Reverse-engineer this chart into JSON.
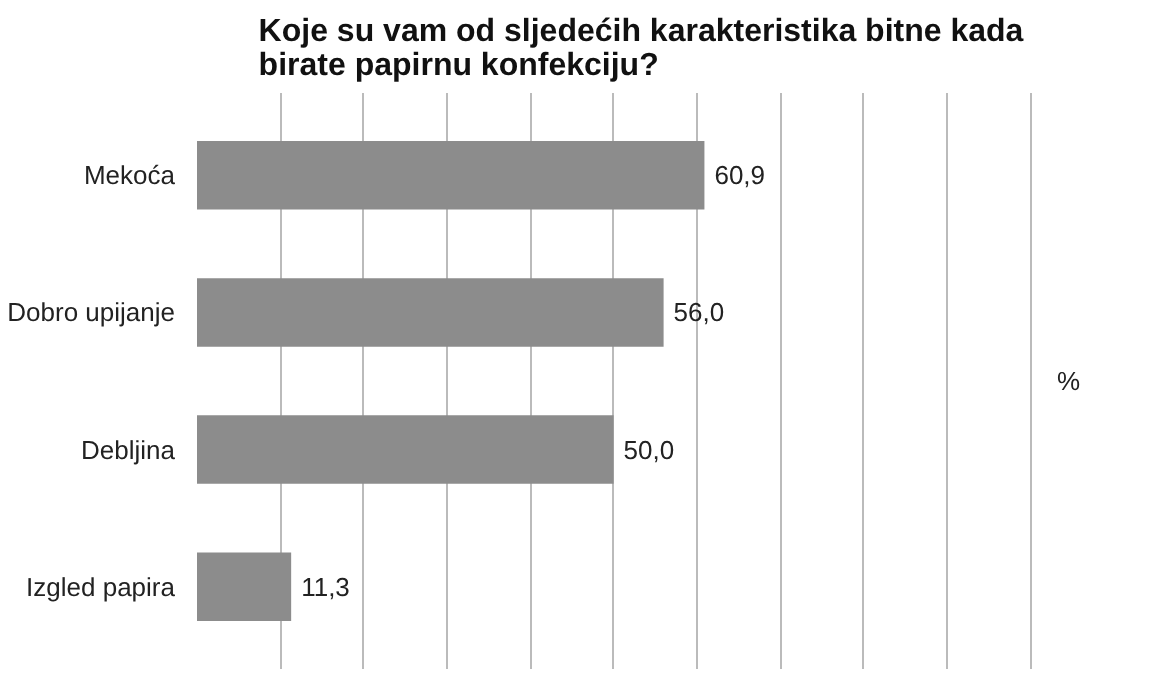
{
  "chart_data": {
    "type": "bar",
    "orientation": "horizontal",
    "title": "Koje su vam od sljedećih karakteristika bitne kada birate papirnu konfekciju?",
    "annotations": [
      "%"
    ],
    "categories": [
      "Mekoća",
      "Dobro upijanje",
      "Debljina",
      "Izgled papira"
    ],
    "values": [
      60.9,
      56.0,
      50.0,
      11.3
    ],
    "value_labels": [
      "60,9",
      "56,0",
      "50,0",
      "11,3"
    ],
    "color": "#8c8c8c",
    "tick_labels": "y",
    "grid": "x"
  }
}
